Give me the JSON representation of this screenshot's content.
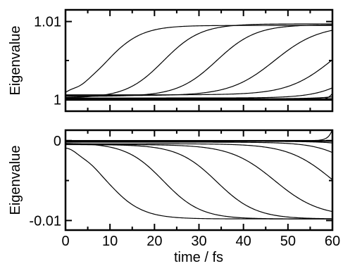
{
  "chart_data": [
    {
      "type": "line",
      "xlabel": "",
      "ylabel": "Eigenvalue",
      "xlim": [
        0,
        60
      ],
      "ylim": [
        0.9985,
        1.0115
      ],
      "xticks": [
        0,
        10,
        20,
        30,
        40,
        50,
        60
      ],
      "xminor": [
        5,
        15,
        25,
        35,
        45,
        55
      ],
      "yticks": [
        1.0,
        1.01
      ],
      "ytick_labels": [
        "1",
        "1.01"
      ],
      "yminor": [
        1.005
      ],
      "show_x_tick_labels": false,
      "series": [
        {
          "kind": "sigmoid",
          "base": 1.0,
          "amp": 0.0095,
          "t0": 9,
          "w": 4
        },
        {
          "kind": "sigmoid",
          "base": 1.0002,
          "amp": 0.0095,
          "t0": 22,
          "w": 4.2
        },
        {
          "kind": "sigmoid",
          "base": 1.0004,
          "amp": 0.0092,
          "t0": 34,
          "w": 4.4
        },
        {
          "kind": "sigmoid",
          "base": 1.0005,
          "amp": 0.009,
          "t0": 47,
          "w": 5
        },
        {
          "kind": "sigmoid",
          "base": 1.0006,
          "amp": 0.009,
          "t0": 60,
          "w": 5
        },
        {
          "kind": "sigmoid",
          "base": 1.0002,
          "amp": 0.009,
          "t0": 68,
          "w": 4.5
        },
        {
          "kind": "sigmoid",
          "base": 1.0001,
          "amp": 0.009,
          "t0": 75,
          "w": 4.2
        },
        {
          "kind": "const",
          "value": 1.0001
        },
        {
          "kind": "const",
          "value": 1.0
        },
        {
          "kind": "const",
          "value": 0.9999
        },
        {
          "kind": "dip",
          "base": 1.0,
          "amp": 0.0008,
          "t0": 60,
          "w": 0.9
        }
      ]
    },
    {
      "type": "line",
      "xlabel": "time / fs",
      "ylabel": "Eigenvalue",
      "xlim": [
        0,
        60
      ],
      "ylim": [
        -0.0112,
        0.0013
      ],
      "xticks": [
        0,
        10,
        20,
        30,
        40,
        50,
        60
      ],
      "xminor": [
        5,
        15,
        25,
        35,
        45,
        55
      ],
      "yticks": [
        0.0,
        -0.01
      ],
      "ytick_labels": [
        "0",
        "-0.01"
      ],
      "yminor": [
        -0.005
      ],
      "show_x_tick_labels": true,
      "series": [
        {
          "kind": "sigmoid",
          "base": 0.0,
          "amp": -0.0098,
          "t0": 9,
          "w": 4
        },
        {
          "kind": "sigmoid",
          "base": -0.0003,
          "amp": -0.0095,
          "t0": 22,
          "w": 4.2
        },
        {
          "kind": "sigmoid",
          "base": -0.0005,
          "amp": -0.0093,
          "t0": 34,
          "w": 4.4
        },
        {
          "kind": "sigmoid",
          "base": -0.0005,
          "amp": -0.009,
          "t0": 47,
          "w": 5
        },
        {
          "kind": "sigmoid",
          "base": -0.0004,
          "amp": -0.009,
          "t0": 60,
          "w": 5
        },
        {
          "kind": "sigmoid",
          "base": -0.0002,
          "amp": -0.009,
          "t0": 68,
          "w": 4.5
        },
        {
          "kind": "sigmoid",
          "base": -0.0001,
          "amp": -0.009,
          "t0": 76,
          "w": 4.2
        },
        {
          "kind": "const",
          "value": 0.0
        },
        {
          "kind": "const",
          "value": -0.0001
        },
        {
          "kind": "dip",
          "base": 0.0,
          "amp": 0.0014,
          "t0": 60,
          "w": 0.9
        }
      ]
    }
  ]
}
